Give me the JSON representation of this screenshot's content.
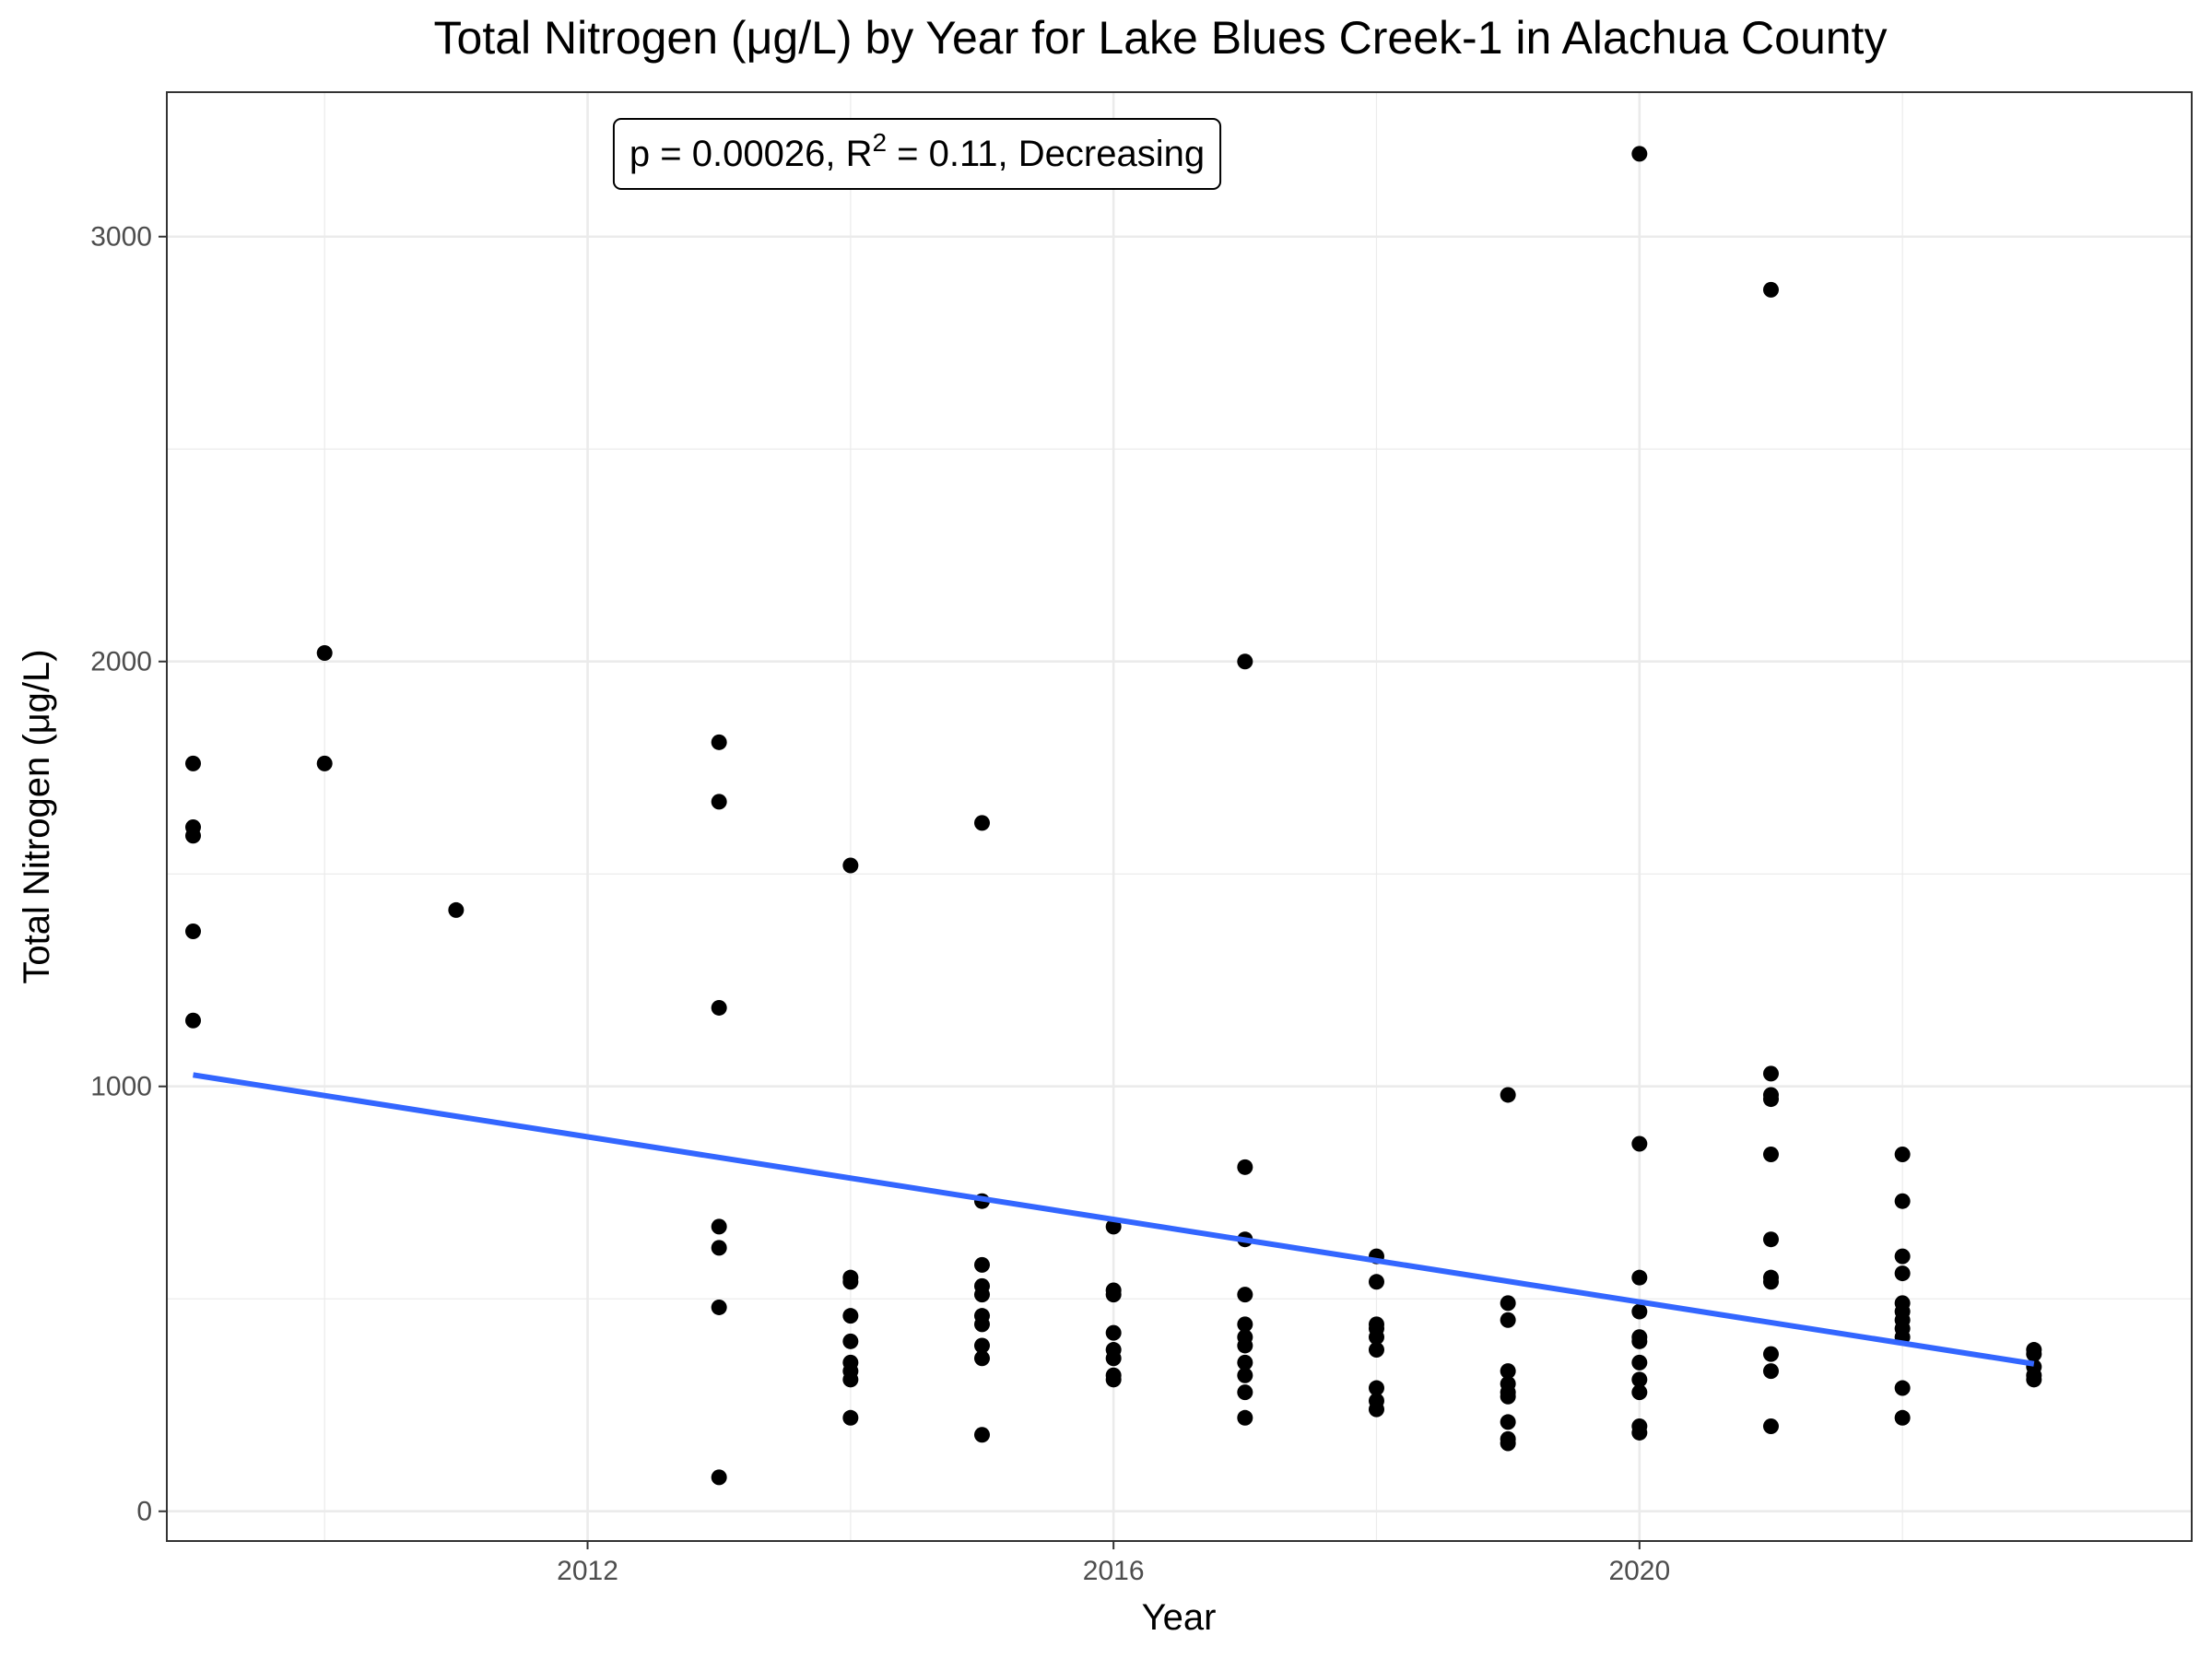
{
  "chart_data": {
    "type": "scatter",
    "title": "Total Nitrogen (μg/L) by Year for Lake Blues Creek-1 in Alachua County",
    "xlabel": "Year",
    "ylabel": "Total Nitrogen (μg/L)",
    "xlim": [
      2008.8,
      2024.2
    ],
    "ylim": [
      -70,
      3340
    ],
    "x_ticks": [
      {
        "value": 2012,
        "label": "2012"
      },
      {
        "value": 2016,
        "label": "2016"
      },
      {
        "value": 2020,
        "label": "2020"
      }
    ],
    "y_ticks": [
      {
        "value": 0,
        "label": "0"
      },
      {
        "value": 1000,
        "label": "1000"
      },
      {
        "value": 2000,
        "label": "2000"
      },
      {
        "value": 3000,
        "label": "3000"
      }
    ],
    "grid": true,
    "annotation": {
      "p_text": "p = 0.00026, R",
      "sup": "2",
      "rest": " = 0.11, Decreasing"
    },
    "colors": {
      "points": "#000000",
      "trend": "#3366ff",
      "grid": "#ebebeb",
      "panel_border": "#333333"
    },
    "trend_line": {
      "x": [
        2009,
        2023
      ],
      "y": [
        1027,
        347
      ]
    },
    "series": [
      {
        "points": [
          {
            "x": 2009,
            "y": 1760
          },
          {
            "x": 2009,
            "y": 1610
          },
          {
            "x": 2009,
            "y": 1590
          },
          {
            "x": 2009,
            "y": 1365
          },
          {
            "x": 2009,
            "y": 1155
          },
          {
            "x": 2010,
            "y": 2020
          },
          {
            "x": 2010,
            "y": 1760
          },
          {
            "x": 2011,
            "y": 1415
          },
          {
            "x": 2013,
            "y": 1810
          },
          {
            "x": 2013,
            "y": 1670
          },
          {
            "x": 2013,
            "y": 1185
          },
          {
            "x": 2013,
            "y": 670
          },
          {
            "x": 2013,
            "y": 620
          },
          {
            "x": 2013,
            "y": 480
          },
          {
            "x": 2013,
            "y": 80
          },
          {
            "x": 2014,
            "y": 1520
          },
          {
            "x": 2014,
            "y": 550
          },
          {
            "x": 2014,
            "y": 540
          },
          {
            "x": 2014,
            "y": 460
          },
          {
            "x": 2014,
            "y": 400
          },
          {
            "x": 2014,
            "y": 350
          },
          {
            "x": 2014,
            "y": 330
          },
          {
            "x": 2014,
            "y": 310
          },
          {
            "x": 2014,
            "y": 220
          },
          {
            "x": 2015,
            "y": 1620
          },
          {
            "x": 2015,
            "y": 730
          },
          {
            "x": 2015,
            "y": 580
          },
          {
            "x": 2015,
            "y": 530
          },
          {
            "x": 2015,
            "y": 510
          },
          {
            "x": 2015,
            "y": 460
          },
          {
            "x": 2015,
            "y": 440
          },
          {
            "x": 2015,
            "y": 390
          },
          {
            "x": 2015,
            "y": 360
          },
          {
            "x": 2015,
            "y": 180
          },
          {
            "x": 2016,
            "y": 670
          },
          {
            "x": 2016,
            "y": 520
          },
          {
            "x": 2016,
            "y": 510
          },
          {
            "x": 2016,
            "y": 420
          },
          {
            "x": 2016,
            "y": 380
          },
          {
            "x": 2016,
            "y": 360
          },
          {
            "x": 2016,
            "y": 320
          },
          {
            "x": 2016,
            "y": 310
          },
          {
            "x": 2017,
            "y": 2000
          },
          {
            "x": 2017,
            "y": 810
          },
          {
            "x": 2017,
            "y": 640
          },
          {
            "x": 2017,
            "y": 510
          },
          {
            "x": 2017,
            "y": 440
          },
          {
            "x": 2017,
            "y": 410
          },
          {
            "x": 2017,
            "y": 390
          },
          {
            "x": 2017,
            "y": 350
          },
          {
            "x": 2017,
            "y": 320
          },
          {
            "x": 2017,
            "y": 280
          },
          {
            "x": 2017,
            "y": 220
          },
          {
            "x": 2018,
            "y": 600
          },
          {
            "x": 2018,
            "y": 540
          },
          {
            "x": 2018,
            "y": 440
          },
          {
            "x": 2018,
            "y": 430
          },
          {
            "x": 2018,
            "y": 410
          },
          {
            "x": 2018,
            "y": 380
          },
          {
            "x": 2018,
            "y": 290
          },
          {
            "x": 2018,
            "y": 260
          },
          {
            "x": 2018,
            "y": 240
          },
          {
            "x": 2019,
            "y": 980
          },
          {
            "x": 2019,
            "y": 490
          },
          {
            "x": 2019,
            "y": 450
          },
          {
            "x": 2019,
            "y": 330
          },
          {
            "x": 2019,
            "y": 300
          },
          {
            "x": 2019,
            "y": 280
          },
          {
            "x": 2019,
            "y": 270
          },
          {
            "x": 2019,
            "y": 210
          },
          {
            "x": 2019,
            "y": 170
          },
          {
            "x": 2019,
            "y": 160
          },
          {
            "x": 2020,
            "y": 3195
          },
          {
            "x": 2020,
            "y": 865
          },
          {
            "x": 2020,
            "y": 550
          },
          {
            "x": 2020,
            "y": 470
          },
          {
            "x": 2020,
            "y": 410
          },
          {
            "x": 2020,
            "y": 400
          },
          {
            "x": 2020,
            "y": 350
          },
          {
            "x": 2020,
            "y": 310
          },
          {
            "x": 2020,
            "y": 280
          },
          {
            "x": 2020,
            "y": 200
          },
          {
            "x": 2020,
            "y": 185
          },
          {
            "x": 2021,
            "y": 2875
          },
          {
            "x": 2021,
            "y": 1030
          },
          {
            "x": 2021,
            "y": 980
          },
          {
            "x": 2021,
            "y": 970
          },
          {
            "x": 2021,
            "y": 840
          },
          {
            "x": 2021,
            "y": 640
          },
          {
            "x": 2021,
            "y": 550
          },
          {
            "x": 2021,
            "y": 540
          },
          {
            "x": 2021,
            "y": 370
          },
          {
            "x": 2021,
            "y": 330
          },
          {
            "x": 2021,
            "y": 200
          },
          {
            "x": 2022,
            "y": 840
          },
          {
            "x": 2022,
            "y": 730
          },
          {
            "x": 2022,
            "y": 600
          },
          {
            "x": 2022,
            "y": 560
          },
          {
            "x": 2022,
            "y": 490
          },
          {
            "x": 2022,
            "y": 470
          },
          {
            "x": 2022,
            "y": 450
          },
          {
            "x": 2022,
            "y": 430
          },
          {
            "x": 2022,
            "y": 410
          },
          {
            "x": 2022,
            "y": 290
          },
          {
            "x": 2022,
            "y": 220
          },
          {
            "x": 2023,
            "y": 380
          },
          {
            "x": 2023,
            "y": 370
          },
          {
            "x": 2023,
            "y": 340
          },
          {
            "x": 2023,
            "y": 320
          },
          {
            "x": 2023,
            "y": 310
          }
        ]
      }
    ]
  }
}
